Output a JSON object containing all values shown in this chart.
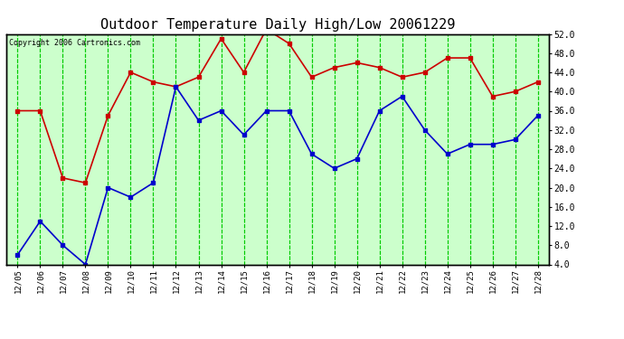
{
  "title": "Outdoor Temperature Daily High/Low 20061229",
  "copyright": "Copyright 2006 Cartronics.com",
  "dates": [
    "12/05",
    "12/06",
    "12/07",
    "12/08",
    "12/09",
    "12/10",
    "12/11",
    "12/12",
    "12/13",
    "12/14",
    "12/15",
    "12/16",
    "12/17",
    "12/18",
    "12/19",
    "12/20",
    "12/21",
    "12/22",
    "12/23",
    "12/24",
    "12/25",
    "12/26",
    "12/27",
    "12/28"
  ],
  "high": [
    36,
    36,
    22,
    21,
    35,
    44,
    42,
    41,
    43,
    51,
    44,
    53,
    50,
    43,
    45,
    46,
    45,
    43,
    44,
    47,
    47,
    39,
    40,
    42
  ],
  "low": [
    6,
    13,
    8,
    4,
    20,
    18,
    21,
    41,
    34,
    36,
    31,
    36,
    36,
    27,
    24,
    26,
    36,
    39,
    32,
    27,
    29,
    29,
    30,
    35
  ],
  "high_color": "#cc0000",
  "low_color": "#0000cc",
  "background_color": "#ccffcc",
  "grid_color": "#00cc00",
  "ylim": [
    4.0,
    52.0
  ],
  "ytick_values": [
    4.0,
    8.0,
    12.0,
    16.0,
    20.0,
    24.0,
    28.0,
    32.0,
    36.0,
    40.0,
    44.0,
    48.0,
    52.0
  ],
  "title_fontsize": 11,
  "marker": "s",
  "markersize": 3,
  "linewidth": 1.2,
  "fig_width": 6.9,
  "fig_height": 3.75,
  "dpi": 100
}
